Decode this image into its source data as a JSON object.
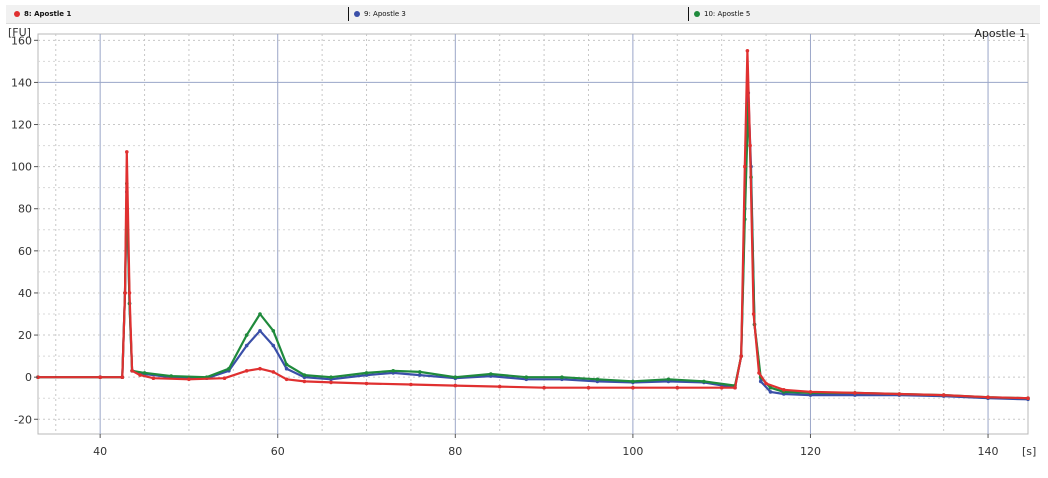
{
  "tabs": [
    {
      "label": "8: Apostle 1",
      "color": "#e03030"
    },
    {
      "label": "9: Apostle 3",
      "color": "#3a4fa8"
    },
    {
      "label": "10: Apostle 5",
      "color": "#1f8a3c"
    }
  ],
  "chart_data": {
    "type": "line",
    "title": "Apostle 1",
    "ylabel": "[FU]",
    "xlabel": "[s]",
    "xlim": [
      33,
      144.5
    ],
    "ylim": [
      -27,
      163
    ],
    "xticks": [
      "40",
      "60",
      "80",
      "100",
      "120",
      "140"
    ],
    "yticks": [
      "-20",
      "0",
      "20",
      "40",
      "60",
      "80",
      "100",
      "120",
      "140",
      "160"
    ],
    "grid": true,
    "series": [
      {
        "name": "8: Apostle 1",
        "color": "#e03030",
        "points": [
          [
            33,
            0
          ],
          [
            40,
            0
          ],
          [
            42.5,
            0
          ],
          [
            42.8,
            40
          ],
          [
            43,
            107
          ],
          [
            43.3,
            40
          ],
          [
            43.6,
            3
          ],
          [
            44.5,
            1
          ],
          [
            46,
            -0.5
          ],
          [
            50,
            -1
          ],
          [
            54,
            -0.5
          ],
          [
            56.5,
            3
          ],
          [
            58,
            4
          ],
          [
            59.5,
            2.5
          ],
          [
            61,
            -1
          ],
          [
            63,
            -2
          ],
          [
            66,
            -2.5
          ],
          [
            70,
            -3
          ],
          [
            75,
            -3.5
          ],
          [
            80,
            -4
          ],
          [
            85,
            -4.5
          ],
          [
            90,
            -5
          ],
          [
            95,
            -5
          ],
          [
            100,
            -5
          ],
          [
            105,
            -5
          ],
          [
            110,
            -5
          ],
          [
            111.5,
            -5
          ],
          [
            112.2,
            10
          ],
          [
            112.6,
            100
          ],
          [
            112.9,
            155
          ],
          [
            113.2,
            110
          ],
          [
            113.6,
            30
          ],
          [
            114.2,
            2
          ],
          [
            115,
            -3
          ],
          [
            117,
            -6
          ],
          [
            120,
            -7
          ],
          [
            125,
            -7.5
          ],
          [
            130,
            -8
          ],
          [
            135,
            -8.5
          ],
          [
            140,
            -9.5
          ],
          [
            144.5,
            -10
          ]
        ]
      },
      {
        "name": "9: Apostle 3",
        "color": "#3a4fa8",
        "points": [
          [
            33,
            0
          ],
          [
            40,
            0
          ],
          [
            42.5,
            0
          ],
          [
            42.8,
            40
          ],
          [
            43,
            88
          ],
          [
            43.3,
            35
          ],
          [
            43.6,
            3
          ],
          [
            45,
            1.5
          ],
          [
            48,
            0
          ],
          [
            52,
            -0.5
          ],
          [
            54.5,
            3
          ],
          [
            56.5,
            15
          ],
          [
            58,
            22
          ],
          [
            59.5,
            15
          ],
          [
            61,
            4
          ],
          [
            63,
            0
          ],
          [
            66,
            -1
          ],
          [
            70,
            1
          ],
          [
            73,
            2
          ],
          [
            76,
            1
          ],
          [
            80,
            -0.5
          ],
          [
            84,
            0.5
          ],
          [
            88,
            -1
          ],
          [
            92,
            -1
          ],
          [
            96,
            -2
          ],
          [
            100,
            -2.5
          ],
          [
            104,
            -2
          ],
          [
            108,
            -2.5
          ],
          [
            111.5,
            -5
          ],
          [
            112.2,
            10
          ],
          [
            112.6,
            80
          ],
          [
            113,
            135
          ],
          [
            113.3,
            100
          ],
          [
            113.7,
            25
          ],
          [
            114.4,
            -2
          ],
          [
            115.5,
            -7
          ],
          [
            117,
            -8
          ],
          [
            120,
            -8.5
          ],
          [
            125,
            -8.5
          ],
          [
            130,
            -8.5
          ],
          [
            135,
            -9
          ],
          [
            140,
            -10
          ],
          [
            144.5,
            -10.5
          ]
        ]
      },
      {
        "name": "10: Apostle 5",
        "color": "#1f8a3c",
        "points": [
          [
            33,
            0
          ],
          [
            40,
            0
          ],
          [
            42.5,
            0
          ],
          [
            42.8,
            40
          ],
          [
            43,
            92
          ],
          [
            43.3,
            35
          ],
          [
            43.6,
            3
          ],
          [
            45,
            2
          ],
          [
            48,
            0.5
          ],
          [
            52,
            0
          ],
          [
            54.5,
            4
          ],
          [
            56.5,
            20
          ],
          [
            58,
            30
          ],
          [
            59.5,
            22
          ],
          [
            61,
            6
          ],
          [
            63,
            1
          ],
          [
            66,
            0
          ],
          [
            70,
            2
          ],
          [
            73,
            3
          ],
          [
            76,
            2.5
          ],
          [
            80,
            0
          ],
          [
            84,
            1.5
          ],
          [
            88,
            0
          ],
          [
            92,
            0
          ],
          [
            96,
            -1
          ],
          [
            100,
            -2
          ],
          [
            104,
            -1
          ],
          [
            108,
            -2
          ],
          [
            111.5,
            -4
          ],
          [
            112.2,
            10
          ],
          [
            112.6,
            75
          ],
          [
            113,
            130
          ],
          [
            113.3,
            95
          ],
          [
            113.7,
            25
          ],
          [
            114.4,
            0
          ],
          [
            115.5,
            -5
          ],
          [
            117,
            -7
          ],
          [
            120,
            -7.5
          ],
          [
            125,
            -7.5
          ],
          [
            130,
            -8
          ],
          [
            135,
            -8.5
          ],
          [
            140,
            -9.5
          ],
          [
            144.5,
            -10
          ]
        ]
      }
    ]
  }
}
